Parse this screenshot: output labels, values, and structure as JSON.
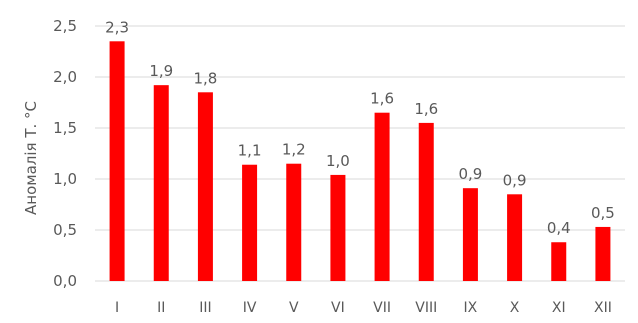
{
  "chart_data": {
    "type": "bar",
    "title": "",
    "xlabel": "",
    "ylabel": "Аномалія Т. °С",
    "categories": [
      "I",
      "II",
      "III",
      "IV",
      "V",
      "VI",
      "VII",
      "VIII",
      "IX",
      "X",
      "XI",
      "XII"
    ],
    "values": [
      2.35,
      1.92,
      1.85,
      1.14,
      1.15,
      1.04,
      1.65,
      1.55,
      0.91,
      0.85,
      0.38,
      0.53
    ],
    "data_labels": [
      "2,3",
      "1,9",
      "1,8",
      "1,1",
      "1,2",
      "1,0",
      "1,6",
      "1,6",
      "0,9",
      "0,9",
      "0,4",
      "0,5"
    ],
    "yticks": [
      "0,0",
      "0,5",
      "1,0",
      "1,5",
      "2,0",
      "2,5"
    ],
    "ylim": [
      0,
      2.5
    ],
    "grid": true,
    "legend": "none",
    "bar_color": "#ff0000",
    "grid_color": "#d9d9d9",
    "text_color": "#595959"
  }
}
